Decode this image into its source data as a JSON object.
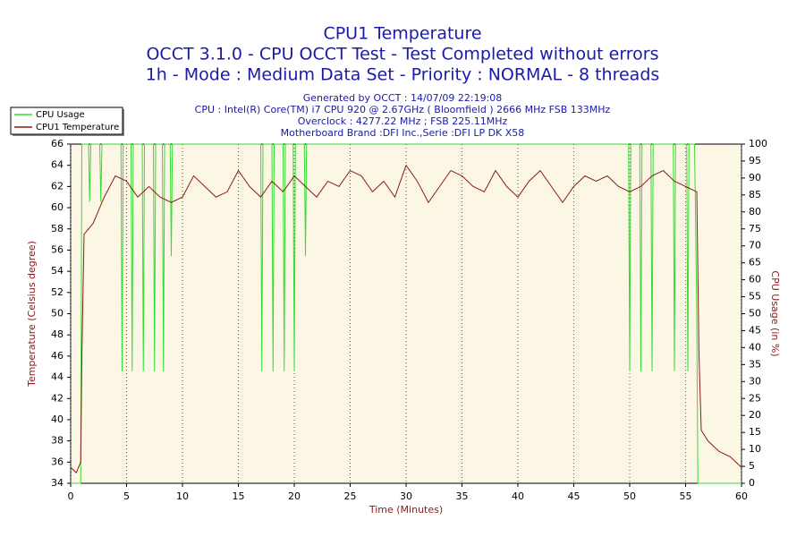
{
  "chart_data": {
    "type": "line",
    "titles": [
      "CPU1 Temperature",
      "OCCT 3.1.0 - CPU OCCT Test - Test Completed without errors",
      "1h - Mode : Medium Data Set - Priority : NORMAL - 8 threads"
    ],
    "subtitles": [
      "Generated by OCCT : 14/07/09 22:19:08",
      "CPU : Intel(R) Core(TM) i7 CPU 920 @ 2.67GHz ( Bloomfield ) 2666 MHz FSB 133MHz",
      "Overclock : 4277.22 MHz ; FSB 225.11MHz",
      "Motherboard Brand :DFI Inc.,Serie :DFI LP DK X58"
    ],
    "x_label": "Time (Minutes)",
    "y_label": "Temperature (Celsius degree)",
    "y2_label": "CPU Usage (in %)",
    "xlim": [
      0,
      60
    ],
    "xticks": [
      0,
      5,
      10,
      15,
      20,
      25,
      30,
      35,
      40,
      45,
      50,
      55,
      60
    ],
    "ylim": [
      34,
      66
    ],
    "yticks": [
      34,
      36,
      38,
      40,
      42,
      44,
      46,
      48,
      50,
      52,
      54,
      56,
      58,
      60,
      62,
      64,
      66
    ],
    "y2lim": [
      0,
      100
    ],
    "y2ticks": [
      0,
      5,
      10,
      15,
      20,
      25,
      30,
      35,
      40,
      45,
      50,
      55,
      60,
      65,
      70,
      75,
      80,
      85,
      90,
      95,
      100
    ],
    "grid": true,
    "legend": "top-left",
    "series": [
      {
        "name": "CPU Usage",
        "color": "#33dd33",
        "axis": "y2",
        "x": [
          0,
          0.9,
          1.0,
          1.6,
          1.7,
          1.8,
          2.6,
          2.7,
          2.8,
          4.5,
          4.6,
          4.7,
          5.4,
          5.5,
          5.6,
          6.4,
          6.5,
          6.6,
          7.4,
          7.5,
          7.6,
          8.2,
          8.3,
          8.4,
          8.9,
          9.0,
          9.1,
          17.0,
          17.1,
          17.2,
          18.0,
          18.1,
          18.2,
          19.0,
          19.1,
          19.2,
          19.9,
          20.0,
          20.1,
          20.9,
          21.0,
          21.1,
          49.9,
          50.0,
          50.1,
          50.9,
          51.0,
          51.1,
          51.9,
          52.0,
          52.1,
          53.9,
          54.0,
          54.1,
          55.1,
          55.2,
          55.3,
          55.8,
          56.0,
          56.1,
          60
        ],
        "values": [
          0,
          0,
          100,
          100,
          83,
          100,
          100,
          83,
          100,
          100,
          33,
          100,
          100,
          33,
          100,
          100,
          33,
          100,
          100,
          33,
          100,
          100,
          33,
          100,
          100,
          67,
          100,
          100,
          33,
          100,
          100,
          33,
          100,
          100,
          33,
          100,
          100,
          33,
          100,
          100,
          67,
          100,
          100,
          33,
          100,
          100,
          33,
          100,
          100,
          33,
          100,
          100,
          33,
          100,
          100,
          33,
          100,
          100,
          50,
          0,
          0
        ]
      },
      {
        "name": "CPU1 Temperature",
        "color": "#8b1a1a",
        "x": [
          0,
          0.5,
          0.9,
          1.0,
          1.2,
          2,
          3,
          4,
          5,
          6,
          7,
          8,
          9,
          10,
          11,
          12,
          13,
          14,
          15,
          16,
          17,
          18,
          19,
          20,
          21,
          22,
          23,
          24,
          25,
          26,
          27,
          28,
          29,
          30,
          31,
          32,
          33,
          34,
          35,
          36,
          37,
          38,
          39,
          40,
          41,
          42,
          43,
          44,
          45,
          46,
          47,
          48,
          49,
          50,
          51,
          52,
          53,
          54,
          55,
          56,
          56.2,
          56.4,
          57,
          58,
          59,
          60
        ],
        "values": [
          35.5,
          35,
          36,
          46,
          57.5,
          58.5,
          61,
          63,
          62.5,
          61,
          62,
          61,
          60.5,
          61,
          63,
          62,
          61,
          61.5,
          63.5,
          62,
          61,
          62.5,
          61.5,
          63,
          62,
          61,
          62.5,
          62,
          63.5,
          63,
          61.5,
          62.5,
          61,
          64,
          62.5,
          60.5,
          62,
          63.5,
          63,
          62,
          61.5,
          63.5,
          62,
          61,
          62.5,
          63.5,
          62,
          60.5,
          62,
          63,
          62.5,
          63,
          62,
          61.5,
          62,
          63,
          63.5,
          62.5,
          62,
          61.5,
          46,
          39,
          38,
          37,
          36.5,
          35.5
        ]
      }
    ]
  }
}
